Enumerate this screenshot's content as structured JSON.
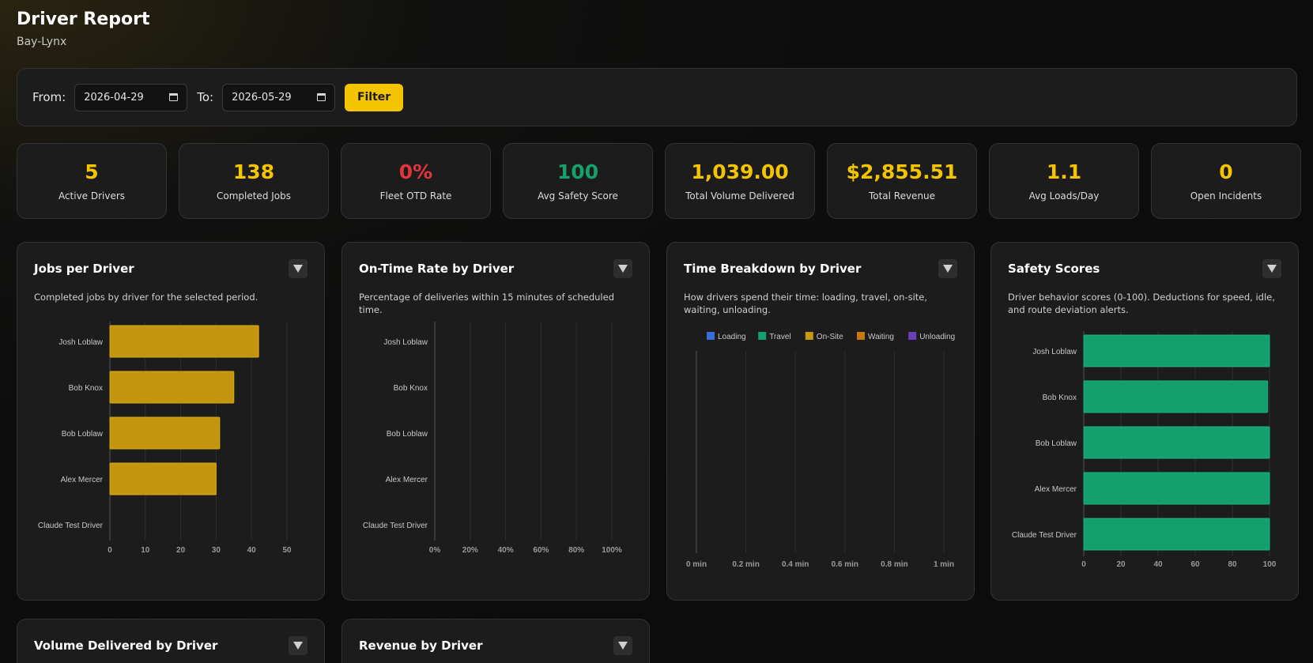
{
  "header": {
    "title": "Driver Report",
    "subtitle": "Bay-Lynx"
  },
  "filter": {
    "from_label": "From:",
    "from_value": "2026-04-29",
    "to_label": "To:",
    "to_value": "2026-05-29",
    "button_label": "Filter"
  },
  "stats": [
    {
      "value": "5",
      "label": "Active Drivers",
      "color": "#f5c400"
    },
    {
      "value": "138",
      "label": "Completed Jobs",
      "color": "#f5c400"
    },
    {
      "value": "0%",
      "label": "Fleet OTD Rate",
      "color": "#e0353b"
    },
    {
      "value": "100",
      "label": "Avg Safety Score",
      "color": "#16a06a"
    },
    {
      "value": "1,039.00",
      "label": "Total Volume Delivered",
      "color": "#f5c400"
    },
    {
      "value": "$2,855.51",
      "label": "Total Revenue",
      "color": "#f5c400"
    },
    {
      "value": "1.1",
      "label": "Avg Loads/Day",
      "color": "#f5c400"
    },
    {
      "value": "0",
      "label": "Open Incidents",
      "color": "#f5c400"
    }
  ],
  "cards": {
    "jobs": {
      "title": "Jobs per Driver",
      "desc": "Completed jobs by driver for the selected period."
    },
    "ontime": {
      "title": "On-Time Rate by Driver",
      "desc": "Percentage of deliveries within 15 minutes of scheduled time."
    },
    "time": {
      "title": "Time Breakdown by Driver",
      "desc": "How drivers spend their time: loading, travel, on-site, waiting, unloading."
    },
    "safety": {
      "title": "Safety Scores",
      "desc": "Driver behavior scores (0-100). Deductions for speed, idle, and route deviation alerts."
    },
    "volume": {
      "title": "Volume Delivered by Driver"
    },
    "revenue": {
      "title": "Revenue by Driver"
    }
  },
  "chart_data": [
    {
      "type": "bar",
      "orientation": "horizontal",
      "categories": [
        "Josh Loblaw",
        "Bob Knox",
        "Bob Loblaw",
        "Alex Mercer",
        "Claude Test Driver"
      ],
      "values": [
        42,
        35,
        31,
        30,
        0
      ],
      "xlim": [
        0,
        50
      ],
      "xticks": [
        "0",
        "10",
        "20",
        "30",
        "40",
        "50"
      ],
      "color": "#c4960f",
      "grid": true
    },
    {
      "type": "bar",
      "orientation": "horizontal",
      "categories": [
        "Josh Loblaw",
        "Bob Knox",
        "Bob Loblaw",
        "Alex Mercer",
        "Claude Test Driver"
      ],
      "values": [
        0,
        0,
        0,
        0,
        0
      ],
      "xlim": [
        0,
        100
      ],
      "xticks": [
        "0%",
        "20%",
        "40%",
        "60%",
        "80%",
        "100%"
      ],
      "grid": true
    },
    {
      "type": "bar",
      "orientation": "horizontal",
      "stacked": true,
      "categories": [],
      "series": [
        {
          "name": "Loading",
          "color": "#3b6bd6",
          "values": []
        },
        {
          "name": "Travel",
          "color": "#14a06e",
          "values": []
        },
        {
          "name": "On-Site",
          "color": "#c49a10",
          "values": []
        },
        {
          "name": "Waiting",
          "color": "#c47a10",
          "values": []
        },
        {
          "name": "Unloading",
          "color": "#6a3fb8",
          "values": []
        }
      ],
      "xlim": [
        0,
        1
      ],
      "xticks": [
        "0 min",
        "0.2 min",
        "0.4 min",
        "0.6 min",
        "0.8 min",
        "1 min"
      ],
      "legend": "top",
      "grid": true
    },
    {
      "type": "bar",
      "orientation": "horizontal",
      "categories": [
        "Josh Loblaw",
        "Bob Knox",
        "Bob Loblaw",
        "Alex Mercer",
        "Claude Test Driver"
      ],
      "values": [
        100,
        99,
        100,
        100,
        100
      ],
      "xlim": [
        0,
        100
      ],
      "xticks": [
        "0",
        "20",
        "40",
        "60",
        "80",
        "100"
      ],
      "color": "#14a06e",
      "grid": true
    }
  ]
}
